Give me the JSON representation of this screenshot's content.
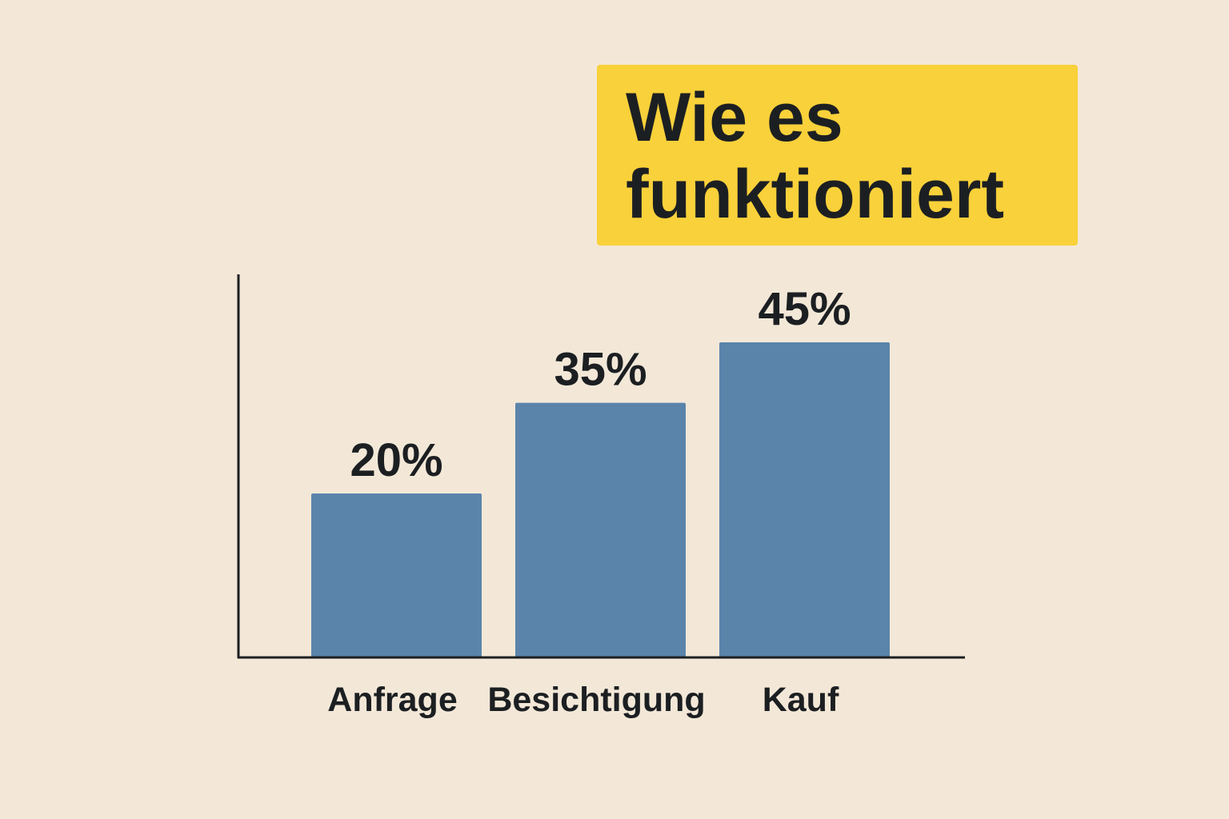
{
  "title": "Wie es funktioniert",
  "colors": {
    "background": "#f3e8d8",
    "title_box": "#f9d13a",
    "bar": "#5b84ab",
    "text": "#1c1f22",
    "axis": "#1c1f22"
  },
  "chart_data": {
    "type": "bar",
    "title": "Wie es funktioniert",
    "xlabel": "",
    "ylabel": "",
    "categories": [
      "Anfrage",
      "Besichtigung",
      "Kauf"
    ],
    "values": [
      20,
      35,
      45
    ],
    "data_labels": [
      "20%",
      "35%",
      "45%"
    ],
    "ylim": [
      0,
      70
    ],
    "grid": false,
    "legend": "none"
  }
}
